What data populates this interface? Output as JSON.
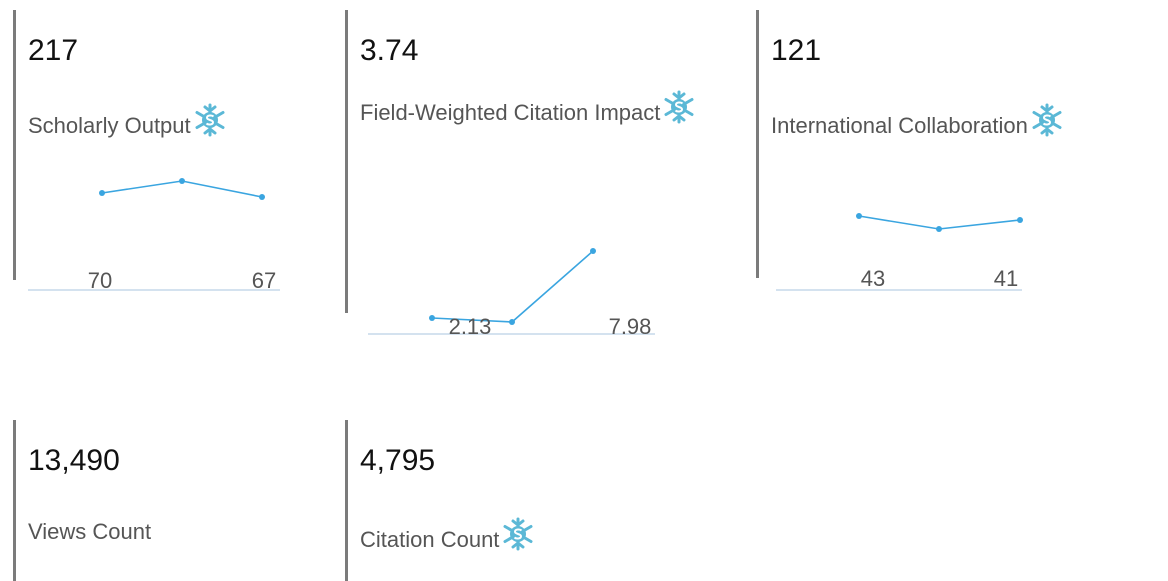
{
  "cards": [
    {
      "value": "217",
      "label": "Scholarly Output",
      "icon": true,
      "sparkline": {
        "values": [
          70,
          79,
          67
        ]
      }
    },
    {
      "value": "3.74",
      "label": "Field-Weighted Citation Impact",
      "icon": true,
      "sparkline": {
        "values": [
          2.13,
          1.78,
          7.98
        ]
      }
    },
    {
      "value": "121",
      "label": "International Collaboration",
      "icon": true,
      "sparkline": {
        "values": [
          43,
          36.5,
          41
        ]
      }
    },
    {
      "value": "13,490",
      "label": "Views Count",
      "icon": false
    },
    {
      "value": "4,795",
      "label": "Citation Count",
      "icon": true
    }
  ]
}
